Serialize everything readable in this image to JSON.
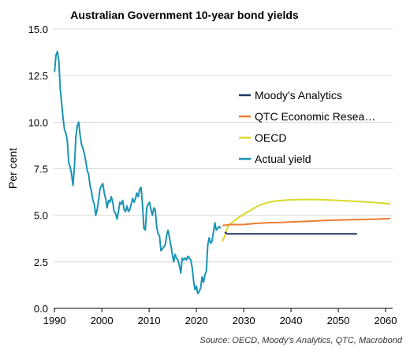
{
  "chart_data": {
    "type": "line",
    "title": "Australian Government 10-year bond yields",
    "ylabel": "Per cent",
    "xlabel": "",
    "source": "Source: OECD, Moody's Analytics, QTC, Macrobond",
    "xlim": [
      1989.8,
      2061.5
    ],
    "ylim": [
      0,
      15
    ],
    "x_ticks": [
      1990,
      2000,
      2010,
      2020,
      2030,
      2040,
      2050,
      2060
    ],
    "x_tick_labels": [
      "1990",
      "2000",
      "2010",
      "2020",
      "2030",
      "2040",
      "2050",
      "2060"
    ],
    "y_ticks": [
      0,
      2.5,
      5,
      7.5,
      10,
      12.5,
      15
    ],
    "y_tick_labels": [
      "0.0",
      "2.5",
      "5.0",
      "7.5",
      "10.0",
      "12.5",
      "15.0"
    ],
    "grid": "horizontal",
    "legend_position": "right-middle",
    "series": [
      {
        "name": "Moody's Analytics",
        "color": "#1f3864",
        "x": [
          2026.0,
          2026.5,
          2027,
          2030,
          2040,
          2050,
          2054
        ],
        "y": [
          4.1,
          4.0,
          4.0,
          4.0,
          4.0,
          4.0,
          4.0
        ]
      },
      {
        "name": "QTC Economic Research",
        "legend_label": "QTC Economic Resea…",
        "color": "#ed7d31",
        "x": [
          2025.5,
          2027,
          2030,
          2032,
          2035,
          2038,
          2041,
          2044,
          2047,
          2050,
          2053,
          2056,
          2059,
          2061
        ],
        "y": [
          4.45,
          4.5,
          4.5,
          4.55,
          4.6,
          4.62,
          4.65,
          4.68,
          4.72,
          4.74,
          4.76,
          4.78,
          4.8,
          4.82
        ]
      },
      {
        "name": "OECD",
        "color": "#d9d928",
        "x": [
          2025.5,
          2026,
          2026.5,
          2027,
          2028,
          2029,
          2030,
          2031,
          2032,
          2033,
          2034,
          2035,
          2036,
          2037,
          2038,
          2040,
          2042,
          2044,
          2046,
          2048,
          2050,
          2052,
          2055,
          2058,
          2061
        ],
        "y": [
          3.6,
          3.9,
          4.3,
          4.5,
          4.7,
          4.9,
          5.05,
          5.2,
          5.35,
          5.5,
          5.6,
          5.68,
          5.73,
          5.77,
          5.8,
          5.83,
          5.85,
          5.85,
          5.84,
          5.82,
          5.8,
          5.77,
          5.73,
          5.68,
          5.62
        ]
      },
      {
        "name": "Actual yield",
        "color": "#1a94b3",
        "x": [
          1990.0,
          1990.3,
          1990.6,
          1990.9,
          1991.2,
          1991.5,
          1991.8,
          1992.1,
          1992.4,
          1992.7,
          1993.0,
          1993.3,
          1993.6,
          1993.9,
          1994.2,
          1994.5,
          1994.8,
          1995.1,
          1995.4,
          1995.7,
          1996.0,
          1996.3,
          1996.6,
          1996.9,
          1997.2,
          1997.5,
          1997.8,
          1998.1,
          1998.4,
          1998.7,
          1999.0,
          1999.3,
          1999.6,
          1999.9,
          2000.2,
          2000.5,
          2000.8,
          2001.1,
          2001.4,
          2001.7,
          2002.0,
          2002.3,
          2002.6,
          2002.9,
          2003.2,
          2003.5,
          2003.8,
          2004.1,
          2004.4,
          2004.7,
          2005.0,
          2005.3,
          2005.6,
          2005.9,
          2006.2,
          2006.5,
          2006.8,
          2007.1,
          2007.4,
          2007.7,
          2008.0,
          2008.3,
          2008.6,
          2008.9,
          2009.2,
          2009.5,
          2009.8,
          2010.1,
          2010.4,
          2010.7,
          2011.0,
          2011.3,
          2011.6,
          2011.9,
          2012.2,
          2012.5,
          2012.8,
          2013.1,
          2013.4,
          2013.7,
          2014.0,
          2014.3,
          2014.6,
          2014.9,
          2015.2,
          2015.5,
          2015.8,
          2016.1,
          2016.4,
          2016.7,
          2017.0,
          2017.3,
          2017.6,
          2017.9,
          2018.2,
          2018.5,
          2018.8,
          2019.1,
          2019.4,
          2019.7,
          2020.0,
          2020.3,
          2020.6,
          2020.9,
          2021.2,
          2021.5,
          2021.8,
          2022.1,
          2022.4,
          2022.7,
          2023.0,
          2023.3,
          2023.6,
          2023.9,
          2024.2,
          2024.5,
          2024.8,
          2025.1
        ],
        "y": [
          12.7,
          13.6,
          13.8,
          13.3,
          11.8,
          11.0,
          10.2,
          9.6,
          9.4,
          9.0,
          7.8,
          7.6,
          7.2,
          6.6,
          7.6,
          9.2,
          9.8,
          10.0,
          9.3,
          8.8,
          8.6,
          8.3,
          7.9,
          7.4,
          7.2,
          6.6,
          6.3,
          5.8,
          5.6,
          5.0,
          5.3,
          5.8,
          6.4,
          6.6,
          6.7,
          6.2,
          5.9,
          5.4,
          5.8,
          5.7,
          6.0,
          5.7,
          5.2,
          5.1,
          4.8,
          5.2,
          5.7,
          5.6,
          5.8,
          5.3,
          5.2,
          5.5,
          5.2,
          5.3,
          5.6,
          5.9,
          5.7,
          5.9,
          6.2,
          6.0,
          6.4,
          6.5,
          5.6,
          4.3,
          4.2,
          5.4,
          5.6,
          5.7,
          5.3,
          5.0,
          5.4,
          5.3,
          4.4,
          4.0,
          3.9,
          3.1,
          3.2,
          3.3,
          3.4,
          3.9,
          4.2,
          3.8,
          3.4,
          2.9,
          2.5,
          2.9,
          2.7,
          2.6,
          2.3,
          1.9,
          2.7,
          2.6,
          2.7,
          2.6,
          2.8,
          2.7,
          2.6,
          2.2,
          1.5,
          1.0,
          1.2,
          0.8,
          0.9,
          1.1,
          1.7,
          1.4,
          1.8,
          2.0,
          3.4,
          3.8,
          3.5,
          3.6,
          4.1,
          4.6,
          4.2,
          4.3,
          4.4,
          4.3
        ]
      }
    ]
  }
}
